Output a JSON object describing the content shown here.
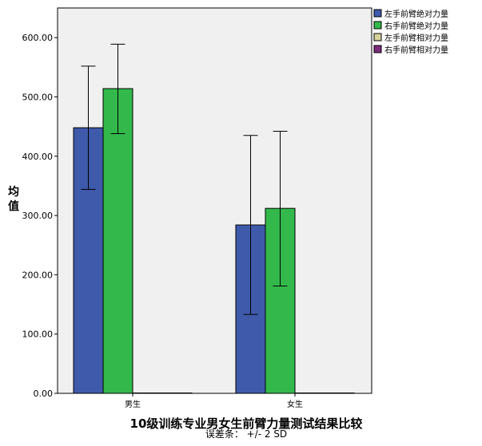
{
  "chart_data": {
    "type": "bar",
    "title": "10级训练专业男女生前臂力量测试结果比较",
    "footnote": "误差条：  +/- 2 SD",
    "ylabel": "均值",
    "xlabel": "",
    "ylim": [
      0,
      650
    ],
    "yticks": [
      0,
      100,
      200,
      300,
      400,
      500,
      600
    ],
    "ytick_labels": [
      "0.00",
      "100.00",
      "200.00",
      "300.00",
      "400.00",
      "500.00",
      "600.00"
    ],
    "categories": [
      "男生",
      "女生"
    ],
    "legend_position": "right",
    "error_bars": "+/- 2 SD",
    "series": [
      {
        "name": "左手前臂绝对力量",
        "color": "#3f5aab",
        "values": [
          448,
          284
        ],
        "err_low": [
          344,
          133
        ],
        "err_high": [
          552,
          435
        ]
      },
      {
        "name": "右手前臂绝对力量",
        "color": "#33b94b",
        "values": [
          514,
          312
        ],
        "err_low": [
          438,
          181
        ],
        "err_high": [
          589,
          442
        ]
      },
      {
        "name": "左手前臂相对力量",
        "color": "#d7d29a",
        "values": [
          0.6,
          0.5
        ],
        "err_low": [
          0.6,
          0.5
        ],
        "err_high": [
          0.6,
          0.5
        ]
      },
      {
        "name": "右手前臂相对力量",
        "color": "#7c2a7c",
        "values": [
          0.6,
          0.5
        ],
        "err_low": [
          0.6,
          0.5
        ],
        "err_high": [
          0.6,
          0.5
        ]
      }
    ],
    "plot_background": "#f0f0f0"
  }
}
